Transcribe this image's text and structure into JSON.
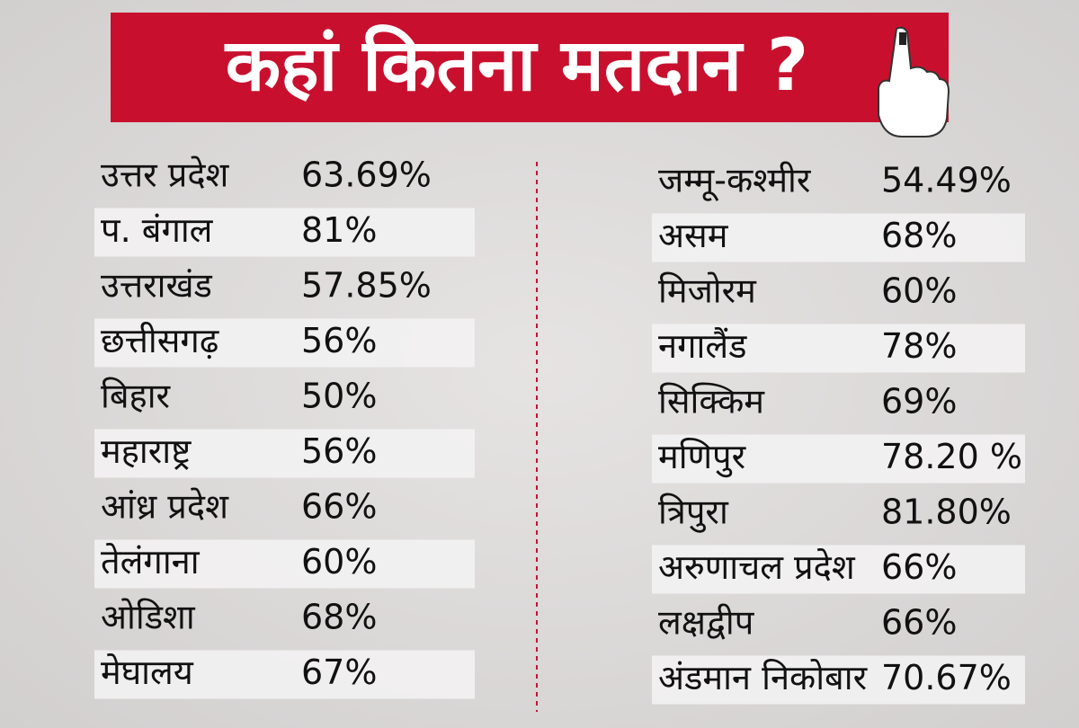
{
  "header": {
    "title": "कहां कितना मतदान ?"
  },
  "left": [
    {
      "state": "उत्तर प्रदेश",
      "turnout": "63.69%"
    },
    {
      "state": "प. बंगाल",
      "turnout": "81%"
    },
    {
      "state": "उत्तराखंड",
      "turnout": "57.85%"
    },
    {
      "state": "छत्तीसगढ़",
      "turnout": "56%"
    },
    {
      "state": "बिहार",
      "turnout": "50%"
    },
    {
      "state": "महाराष्ट्र",
      "turnout": "56%"
    },
    {
      "state": "आंध्र प्रदेश",
      "turnout": "66%"
    },
    {
      "state": "तेलंगाना",
      "turnout": "60%"
    },
    {
      "state": "ओडिशा",
      "turnout": "68%"
    },
    {
      "state": "मेघालय",
      "turnout": "67%"
    }
  ],
  "right": [
    {
      "state": "जम्मू-कश्मीर",
      "turnout": "54.49%"
    },
    {
      "state": "असम",
      "turnout": "68%"
    },
    {
      "state": "मिजोरम",
      "turnout": "60%"
    },
    {
      "state": "नगालैंड",
      "turnout": "78%"
    },
    {
      "state": "सिक्किम",
      "turnout": "69%"
    },
    {
      "state": "मणिपुर",
      "turnout": "78.20 %"
    },
    {
      "state": "त्रिपुरा",
      "turnout": "81.80%"
    },
    {
      "state": "अरुणाचल प्रदेश",
      "turnout": "66%"
    },
    {
      "state": "लक्षद्वीप",
      "turnout": "66%"
    },
    {
      "state": "अंडमान निकोबार",
      "turnout": "70.67%"
    }
  ]
}
